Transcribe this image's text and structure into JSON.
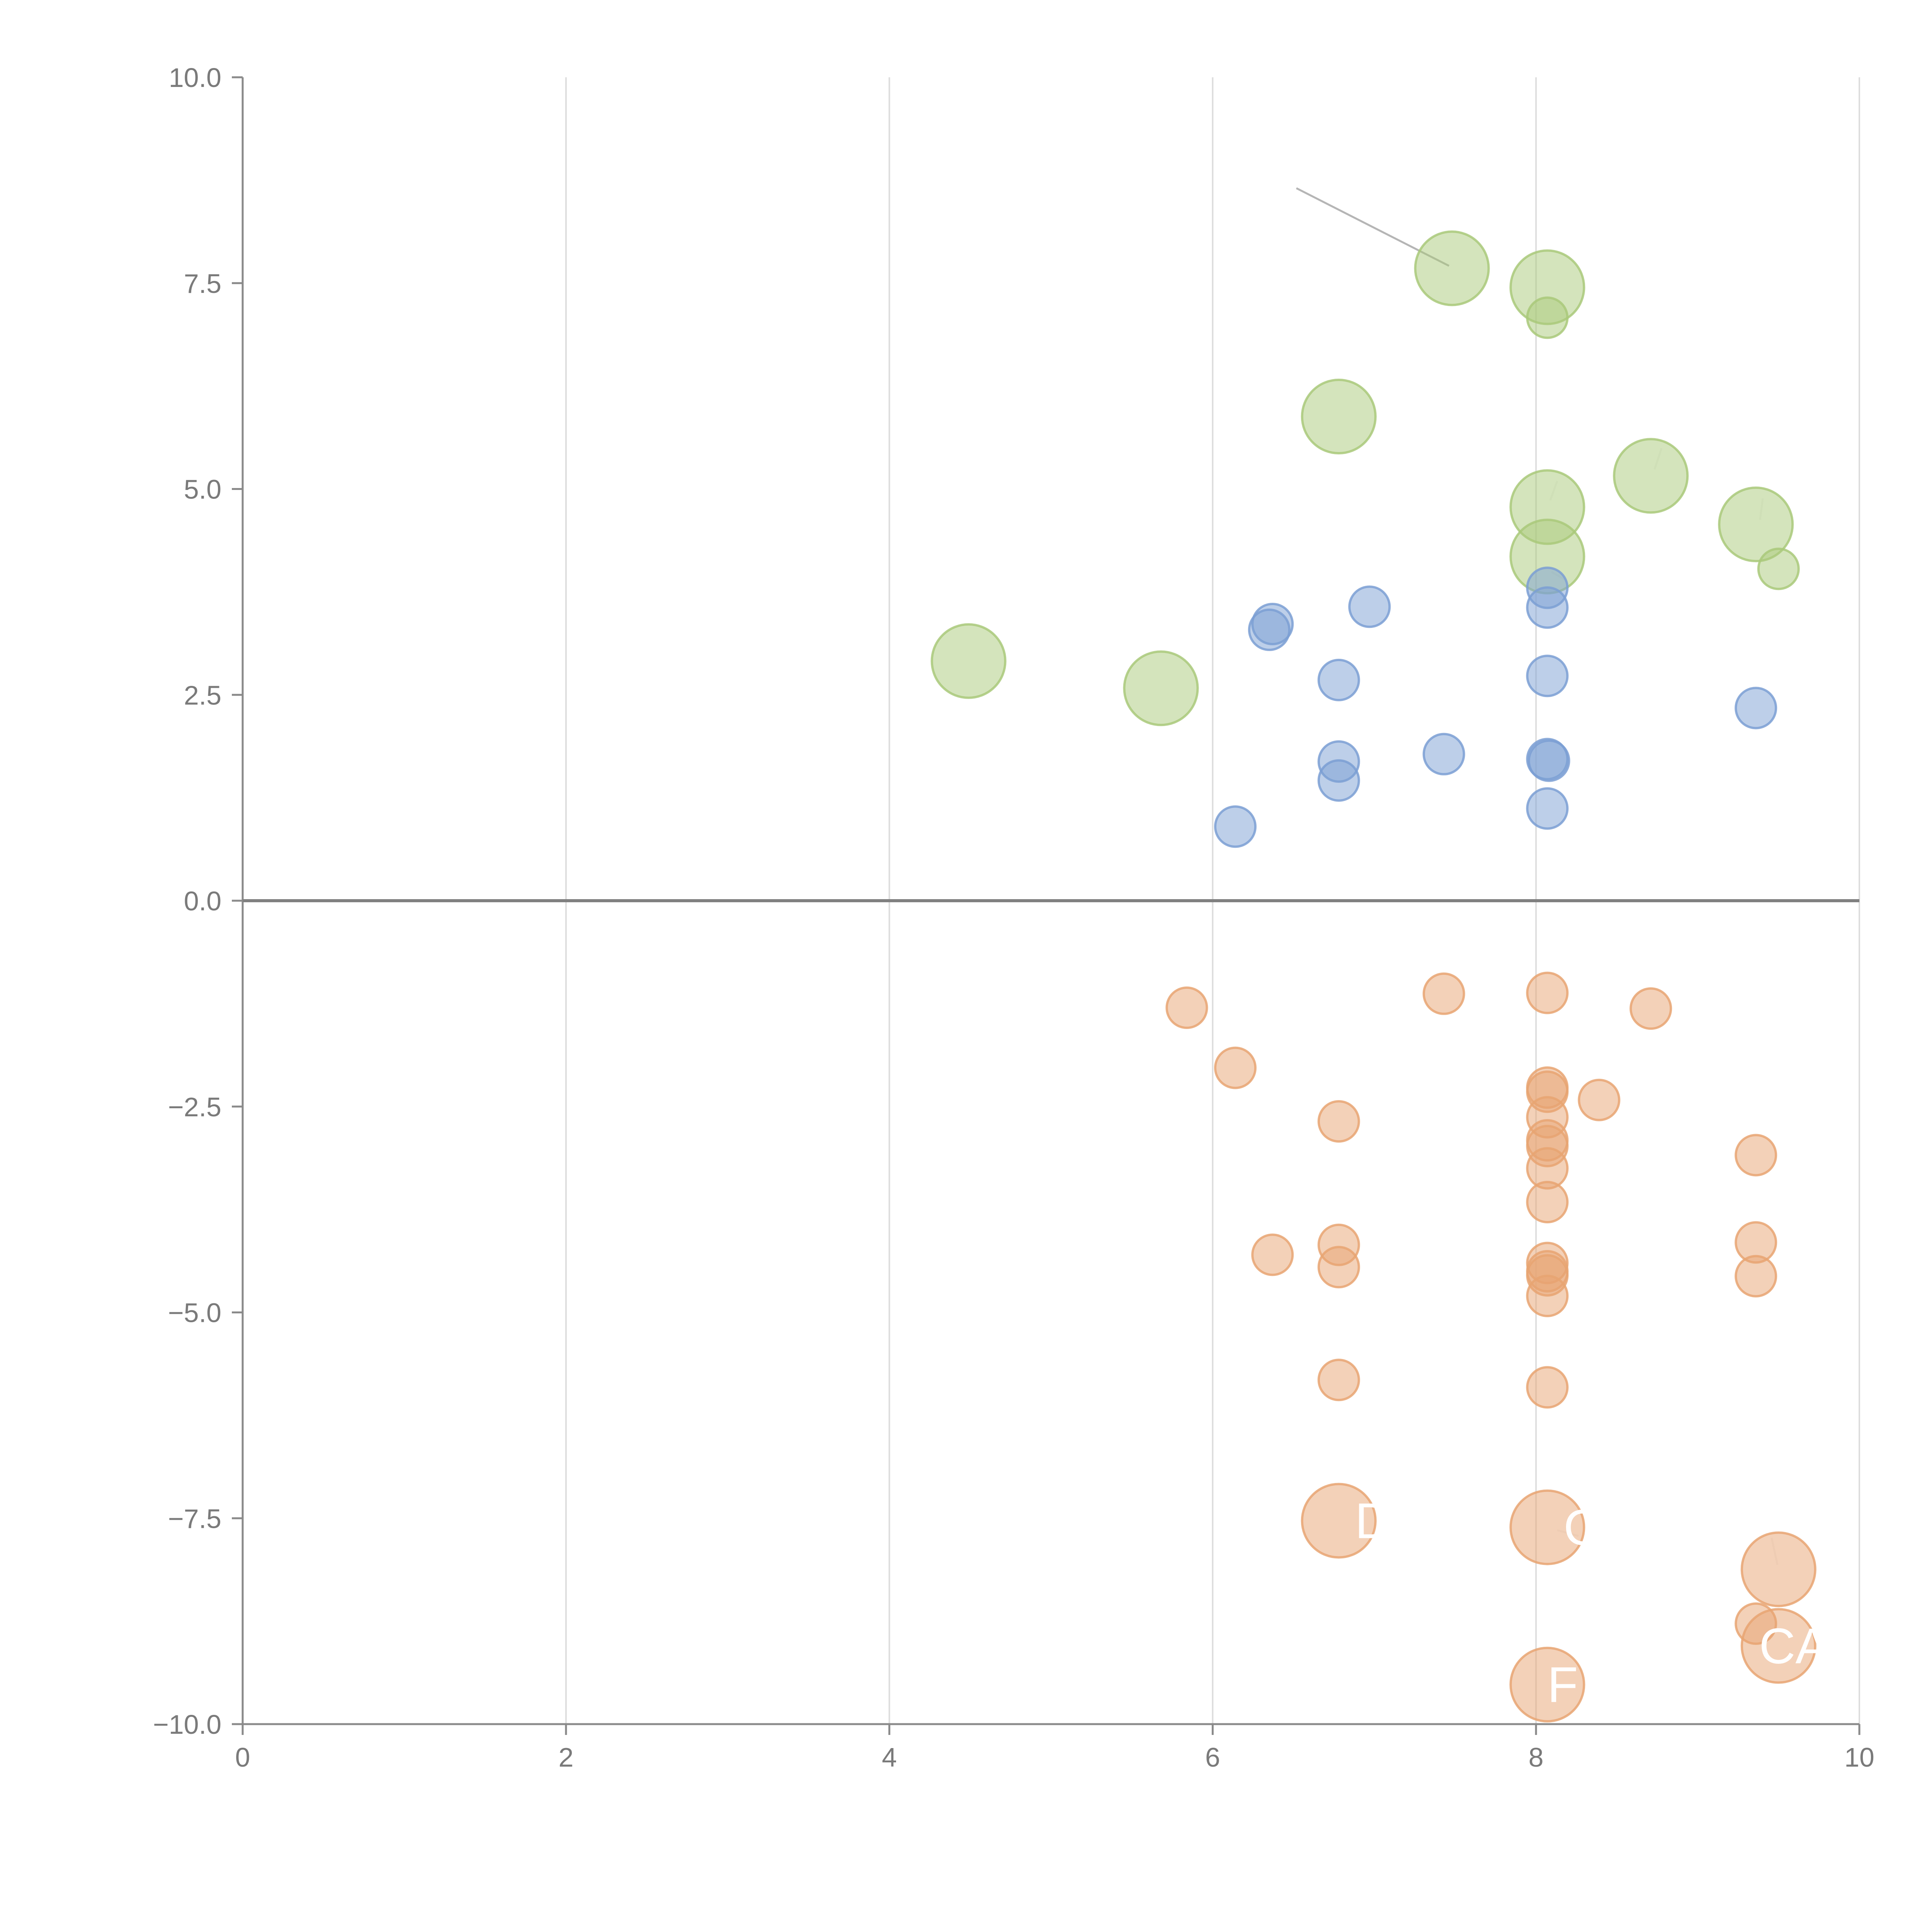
{
  "chart_data": {
    "type": "scatter",
    "subtype": "bubble",
    "title": "",
    "xlabel": "",
    "ylabel": "",
    "xlim": [
      0,
      10
    ],
    "ylim": [
      -10,
      10
    ],
    "x_ticks": [
      0,
      2,
      4,
      6,
      8,
      10
    ],
    "y_ticks": [
      10,
      7.5,
      5,
      2.5,
      0,
      -2.5,
      -5,
      -7.5,
      -10
    ],
    "x_tick_labels": [
      "0",
      "2",
      "4",
      "6",
      "8",
      "10"
    ],
    "y_tick_labels": [
      "10.0",
      "7.5",
      "5.0",
      "2.5",
      "0.0",
      "−2.5",
      "−5.0",
      "−7.5",
      "−10.0"
    ],
    "grid": "vertical",
    "legend": "none",
    "zero_line": true,
    "series": [
      {
        "color": "#a9c97a",
        "points": [
          {
            "x": 7.48,
            "y": 7.68,
            "size": 3
          },
          {
            "x": 8.07,
            "y": 7.45,
            "size": 3
          },
          {
            "x": 8.07,
            "y": 7.08,
            "size": 1
          },
          {
            "x": 6.78,
            "y": 5.88,
            "size": 3
          },
          {
            "x": 8.71,
            "y": 5.16,
            "size": 3
          },
          {
            "x": 8.07,
            "y": 4.78,
            "size": 3
          },
          {
            "x": 9.36,
            "y": 4.57,
            "size": 3
          },
          {
            "x": 9.5,
            "y": 4.03,
            "size": 1
          },
          {
            "x": 8.07,
            "y": 4.18,
            "size": 3
          },
          {
            "x": 4.49,
            "y": 2.91,
            "size": 3
          },
          {
            "x": 5.68,
            "y": 2.58,
            "size": 3
          }
        ]
      },
      {
        "color": "#7b9fd4",
        "points": [
          {
            "x": 8.07,
            "y": 3.8,
            "size": 1
          },
          {
            "x": 8.07,
            "y": 3.56,
            "size": 1
          },
          {
            "x": 6.97,
            "y": 3.57,
            "size": 1
          },
          {
            "x": 6.37,
            "y": 3.36,
            "size": 1
          },
          {
            "x": 6.35,
            "y": 3.29,
            "size": 1
          },
          {
            "x": 8.07,
            "y": 2.73,
            "size": 1
          },
          {
            "x": 6.78,
            "y": 2.68,
            "size": 1
          },
          {
            "x": 9.36,
            "y": 2.34,
            "size": 1
          },
          {
            "x": 7.43,
            "y": 1.78,
            "size": 1
          },
          {
            "x": 8.07,
            "y": 1.72,
            "size": 1
          },
          {
            "x": 8.08,
            "y": 1.7,
            "size": 1
          },
          {
            "x": 6.78,
            "y": 1.69,
            "size": 1
          },
          {
            "x": 6.78,
            "y": 1.46,
            "size": 1
          },
          {
            "x": 8.07,
            "y": 1.12,
            "size": 1
          },
          {
            "x": 6.14,
            "y": 0.9,
            "size": 1
          }
        ]
      },
      {
        "color": "#e8a472",
        "points": [
          {
            "x": 5.84,
            "y": -1.3,
            "size": 1
          },
          {
            "x": 7.43,
            "y": -1.13,
            "size": 1
          },
          {
            "x": 8.07,
            "y": -1.12,
            "size": 1
          },
          {
            "x": 8.71,
            "y": -1.31,
            "size": 1
          },
          {
            "x": 6.14,
            "y": -2.03,
            "size": 1
          },
          {
            "x": 8.07,
            "y": -2.27,
            "size": 1
          },
          {
            "x": 8.07,
            "y": -2.32,
            "size": 1
          },
          {
            "x": 8.39,
            "y": -2.42,
            "size": 1
          },
          {
            "x": 8.07,
            "y": -2.63,
            "size": 1
          },
          {
            "x": 6.78,
            "y": -2.68,
            "size": 1
          },
          {
            "x": 8.07,
            "y": -2.91,
            "size": 1
          },
          {
            "x": 8.07,
            "y": -2.98,
            "size": 1
          },
          {
            "x": 9.36,
            "y": -3.09,
            "size": 1
          },
          {
            "x": 8.07,
            "y": -3.25,
            "size": 1
          },
          {
            "x": 8.07,
            "y": -3.66,
            "size": 1
          },
          {
            "x": 6.78,
            "y": -4.18,
            "size": 1
          },
          {
            "x": 9.36,
            "y": -4.15,
            "size": 1
          },
          {
            "x": 6.37,
            "y": -4.3,
            "size": 1
          },
          {
            "x": 8.07,
            "y": -4.4,
            "size": 1
          },
          {
            "x": 6.78,
            "y": -4.45,
            "size": 1
          },
          {
            "x": 8.07,
            "y": -4.5,
            "size": 1
          },
          {
            "x": 8.07,
            "y": -4.55,
            "size": 1
          },
          {
            "x": 9.36,
            "y": -4.56,
            "size": 1
          },
          {
            "x": 8.07,
            "y": -4.8,
            "size": 1
          },
          {
            "x": 6.78,
            "y": -5.82,
            "size": 1
          },
          {
            "x": 8.07,
            "y": -5.91,
            "size": 1
          },
          {
            "x": 6.78,
            "y": -7.53,
            "size": 3
          },
          {
            "x": 8.07,
            "y": -7.61,
            "size": 3
          },
          {
            "x": 9.5,
            "y": -8.12,
            "size": 3
          },
          {
            "x": 9.36,
            "y": -8.78,
            "size": 1
          },
          {
            "x": 9.5,
            "y": -9.05,
            "size": 3
          },
          {
            "x": 8.07,
            "y": -9.52,
            "size": 3
          }
        ]
      }
    ],
    "annotations": [
      {
        "text": "D",
        "x": 6.88,
        "y": -7.53
      },
      {
        "text": "C",
        "x": 8.17,
        "y": -7.61
      },
      {
        "text": "CA",
        "x": 9.38,
        "y": -9.05
      },
      {
        "text": "F",
        "x": 8.07,
        "y": -9.52
      }
    ]
  }
}
